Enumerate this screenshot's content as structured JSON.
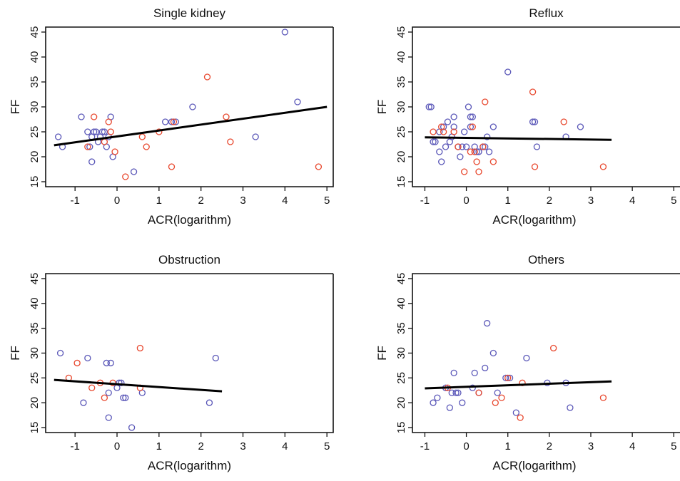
{
  "colors": {
    "series_a": "#5a57b8",
    "series_b": "#e8482e",
    "fit": "#000000"
  },
  "chart_data": [
    {
      "type": "scatter",
      "title": "Single kidney",
      "xlabel": "ACR(logarithm)",
      "ylabel": "FF",
      "xlim": [
        -1.7,
        5.15
      ],
      "ylim": [
        14,
        46
      ],
      "xticks": [
        "-1",
        "0",
        "1",
        "2",
        "3",
        "4",
        "5"
      ],
      "yticks": [
        "15",
        "20",
        "25",
        "30",
        "35",
        "40",
        "45"
      ],
      "grid": false,
      "series": [
        {
          "color": "#5a57b8",
          "points": [
            [
              -1.4,
              24
            ],
            [
              -1.3,
              22
            ],
            [
              -0.85,
              28
            ],
            [
              -0.7,
              25
            ],
            [
              -0.65,
              22
            ],
            [
              -0.6,
              24
            ],
            [
              -0.55,
              25
            ],
            [
              -0.5,
              25
            ],
            [
              -0.45,
              23
            ],
            [
              -0.4,
              24
            ],
            [
              -0.35,
              25
            ],
            [
              -0.3,
              25
            ],
            [
              -0.25,
              22
            ],
            [
              -0.2,
              24
            ],
            [
              -0.15,
              28
            ],
            [
              -0.6,
              19
            ],
            [
              -0.1,
              20
            ],
            [
              0.4,
              17
            ],
            [
              1.15,
              27
            ],
            [
              1.3,
              27
            ],
            [
              1.4,
              27
            ],
            [
              1.8,
              30
            ],
            [
              3.3,
              24
            ],
            [
              4.0,
              45
            ],
            [
              4.3,
              31
            ]
          ]
        },
        {
          "color": "#e8482e",
          "points": [
            [
              -0.7,
              22
            ],
            [
              -0.55,
              28
            ],
            [
              -0.3,
              23
            ],
            [
              -0.2,
              27
            ],
            [
              -0.15,
              25
            ],
            [
              -0.05,
              21
            ],
            [
              0.2,
              16
            ],
            [
              0.6,
              24
            ],
            [
              0.7,
              22
            ],
            [
              1.0,
              25
            ],
            [
              1.3,
              18
            ],
            [
              1.35,
              27
            ],
            [
              2.15,
              36
            ],
            [
              2.6,
              28
            ],
            [
              2.7,
              23
            ],
            [
              4.8,
              18
            ]
          ]
        }
      ],
      "fit_line": {
        "x": [
          -1.5,
          5.0
        ],
        "y": [
          22.3,
          30.0
        ]
      }
    },
    {
      "type": "scatter",
      "title": "Reflux",
      "xlabel": "ACR(logarithm)",
      "ylabel": "FF",
      "xlim": [
        -1.3,
        5.15
      ],
      "ylim": [
        14,
        46
      ],
      "xticks": [
        "-1",
        "0",
        "1",
        "2",
        "3",
        "4",
        "5"
      ],
      "yticks": [
        "15",
        "20",
        "25",
        "30",
        "35",
        "40",
        "45"
      ],
      "grid": false,
      "series": [
        {
          "color": "#5a57b8",
          "points": [
            [
              -0.9,
              30
            ],
            [
              -0.85,
              30
            ],
            [
              -0.8,
              23
            ],
            [
              -0.75,
              23
            ],
            [
              -0.65,
              25
            ],
            [
              -0.65,
              21
            ],
            [
              -0.6,
              19
            ],
            [
              -0.55,
              26
            ],
            [
              -0.5,
              22
            ],
            [
              -0.45,
              27
            ],
            [
              -0.4,
              23
            ],
            [
              -0.35,
              24
            ],
            [
              -0.3,
              26
            ],
            [
              -0.3,
              28
            ],
            [
              -0.2,
              22
            ],
            [
              -0.15,
              20
            ],
            [
              -0.1,
              22
            ],
            [
              -0.05,
              25
            ],
            [
              0.0,
              22
            ],
            [
              0.05,
              30
            ],
            [
              0.1,
              26
            ],
            [
              0.1,
              28
            ],
            [
              0.15,
              28
            ],
            [
              0.2,
              22
            ],
            [
              0.25,
              21
            ],
            [
              0.3,
              21
            ],
            [
              0.4,
              22
            ],
            [
              0.45,
              22
            ],
            [
              0.5,
              24
            ],
            [
              0.55,
              21
            ],
            [
              0.65,
              26
            ],
            [
              1.0,
              37
            ],
            [
              1.6,
              27
            ],
            [
              1.65,
              27
            ],
            [
              1.7,
              22
            ],
            [
              2.4,
              24
            ],
            [
              2.75,
              26
            ]
          ]
        },
        {
          "color": "#e8482e",
          "points": [
            [
              -0.8,
              25
            ],
            [
              -0.6,
              26
            ],
            [
              -0.55,
              25
            ],
            [
              -0.3,
              25
            ],
            [
              -0.2,
              22
            ],
            [
              -0.05,
              17
            ],
            [
              0.1,
              21
            ],
            [
              0.15,
              26
            ],
            [
              0.2,
              21
            ],
            [
              0.25,
              19
            ],
            [
              0.3,
              17
            ],
            [
              0.4,
              22
            ],
            [
              0.45,
              31
            ],
            [
              0.65,
              19
            ],
            [
              1.6,
              33
            ],
            [
              1.65,
              18
            ],
            [
              2.35,
              27
            ],
            [
              3.3,
              18
            ]
          ]
        }
      ],
      "fit_line": {
        "x": [
          -1.0,
          3.5
        ],
        "y": [
          23.9,
          23.4
        ]
      }
    },
    {
      "type": "scatter",
      "title": "Obstruction",
      "xlabel": "ACR(logarithm)",
      "ylabel": "FF",
      "xlim": [
        -1.7,
        5.15
      ],
      "ylim": [
        14,
        46
      ],
      "xticks": [
        "-1",
        "0",
        "1",
        "2",
        "3",
        "4",
        "5"
      ],
      "yticks": [
        "15",
        "20",
        "25",
        "30",
        "35",
        "40",
        "45"
      ],
      "grid": false,
      "series": [
        {
          "color": "#5a57b8",
          "points": [
            [
              -1.35,
              30
            ],
            [
              -0.8,
              20
            ],
            [
              -0.7,
              29
            ],
            [
              -0.25,
              28
            ],
            [
              -0.2,
              22
            ],
            [
              -0.15,
              28
            ],
            [
              -0.2,
              17
            ],
            [
              0.0,
              23
            ],
            [
              0.05,
              24
            ],
            [
              0.1,
              24
            ],
            [
              0.15,
              21
            ],
            [
              0.2,
              21
            ],
            [
              0.35,
              15
            ],
            [
              0.6,
              22
            ],
            [
              2.2,
              20
            ],
            [
              2.35,
              29
            ]
          ]
        },
        {
          "color": "#e8482e",
          "points": [
            [
              -1.15,
              25
            ],
            [
              -0.95,
              28
            ],
            [
              -0.6,
              23
            ],
            [
              -0.4,
              24
            ],
            [
              -0.3,
              21
            ],
            [
              -0.1,
              24
            ],
            [
              0.55,
              23
            ],
            [
              0.55,
              31
            ]
          ]
        }
      ],
      "fit_line": {
        "x": [
          -1.5,
          2.5
        ],
        "y": [
          24.6,
          22.3
        ]
      }
    },
    {
      "type": "scatter",
      "title": "Others",
      "xlabel": "ACR(logarithm)",
      "ylabel": "FF",
      "xlim": [
        -1.3,
        5.15
      ],
      "ylim": [
        14,
        46
      ],
      "xticks": [
        "-1",
        "0",
        "1",
        "2",
        "3",
        "4",
        "5"
      ],
      "yticks": [
        "15",
        "20",
        "25",
        "30",
        "35",
        "40",
        "45"
      ],
      "grid": false,
      "series": [
        {
          "color": "#5a57b8",
          "points": [
            [
              -0.8,
              20
            ],
            [
              -0.7,
              21
            ],
            [
              -0.5,
              23
            ],
            [
              -0.4,
              19
            ],
            [
              -0.35,
              22
            ],
            [
              -0.3,
              26
            ],
            [
              -0.25,
              22
            ],
            [
              -0.2,
              22
            ],
            [
              -0.1,
              20
            ],
            [
              0.15,
              23
            ],
            [
              0.2,
              26
            ],
            [
              0.3,
              22
            ],
            [
              0.45,
              27
            ],
            [
              0.5,
              36
            ],
            [
              0.65,
              30
            ],
            [
              0.75,
              22
            ],
            [
              0.95,
              25
            ],
            [
              1.05,
              25
            ],
            [
              1.2,
              18
            ],
            [
              1.45,
              29
            ],
            [
              1.95,
              24
            ],
            [
              2.4,
              24
            ],
            [
              2.5,
              19
            ]
          ]
        },
        {
          "color": "#e8482e",
          "points": [
            [
              -0.45,
              23
            ],
            [
              0.3,
              22
            ],
            [
              0.7,
              20
            ],
            [
              0.85,
              21
            ],
            [
              1.0,
              25
            ],
            [
              1.3,
              17
            ],
            [
              1.35,
              24
            ],
            [
              2.1,
              31
            ],
            [
              3.3,
              21
            ]
          ]
        }
      ],
      "fit_line": {
        "x": [
          -1.0,
          3.5
        ],
        "y": [
          22.9,
          24.3
        ]
      }
    }
  ]
}
